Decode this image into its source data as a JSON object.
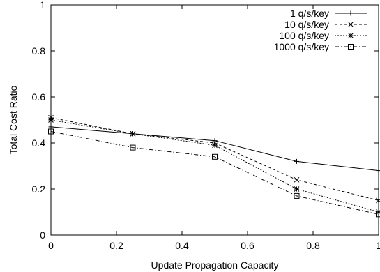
{
  "chart_data": {
    "type": "line",
    "title": "",
    "xlabel": "Update Propagation Capacity",
    "ylabel": "Total Cost Ratio",
    "xlim": [
      0,
      1
    ],
    "ylim": [
      0,
      1
    ],
    "x_ticks": [
      0,
      0.2,
      0.4,
      0.6,
      0.8,
      1
    ],
    "x_tick_labels": [
      "0",
      "0.2",
      "0.4",
      "0.6",
      "0.8",
      "1"
    ],
    "y_ticks": [
      0,
      0.2,
      0.4,
      0.6,
      0.8,
      1
    ],
    "y_tick_labels": [
      "0",
      "0.2",
      "0.4",
      "0.6",
      "0.8",
      "1"
    ],
    "grid": false,
    "legend_position": "top-right",
    "x": [
      0,
      0.25,
      0.5,
      0.75,
      1
    ],
    "series": [
      {
        "name": "1 q/s/key",
        "values": [
          0.47,
          0.44,
          0.41,
          0.32,
          0.28
        ],
        "marker": "plus",
        "dash": "solid"
      },
      {
        "name": "10 q/s/key",
        "values": [
          0.51,
          0.44,
          0.4,
          0.24,
          0.15
        ],
        "marker": "cross",
        "dash": "dashed"
      },
      {
        "name": "100 q/s/key",
        "values": [
          0.5,
          0.44,
          0.39,
          0.2,
          0.1
        ],
        "marker": "star",
        "dash": "dotted"
      },
      {
        "name": "1000 q/s/key",
        "values": [
          0.45,
          0.38,
          0.34,
          0.17,
          0.09
        ],
        "marker": "square",
        "dash": "dashdot"
      }
    ]
  }
}
